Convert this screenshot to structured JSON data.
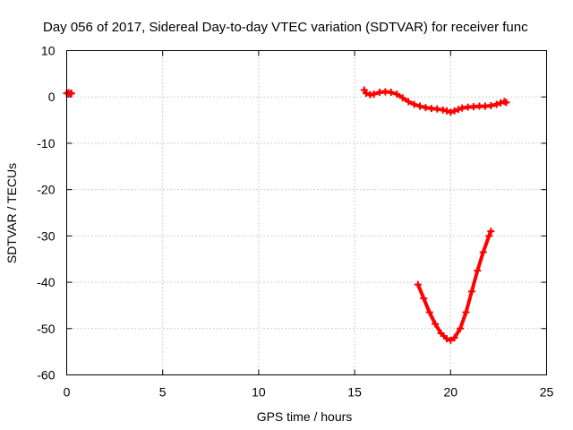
{
  "chart_data": {
    "type": "scatter",
    "title": "Day 056 of 2017, Sidereal Day-to-day VTEC variation (SDTVAR) for receiver func",
    "xlabel": "GPS time / hours",
    "ylabel": "SDTVAR / TECUs",
    "xlim": [
      0,
      25
    ],
    "ylim": [
      -60,
      10
    ],
    "xticks": [
      0,
      5,
      10,
      15,
      20,
      25
    ],
    "xtick_labels": [
      "0",
      "5",
      "10",
      "15",
      "20",
      "25"
    ],
    "yticks": [
      10,
      0,
      -10,
      -20,
      -30,
      -40,
      -50,
      -60
    ],
    "ytick_labels": [
      "10",
      "0",
      "-10",
      "-20",
      "-30",
      "-40",
      "-50",
      "-60"
    ],
    "grid": true,
    "color": "#ff0000",
    "series": [
      {
        "name": "segment-start",
        "x": [
          0.0,
          0.1,
          0.2,
          0.25
        ],
        "y": [
          0.8,
          0.9,
          0.7,
          0.8
        ]
      },
      {
        "name": "segment-upper",
        "x": [
          15.5,
          15.6,
          15.8,
          16.0,
          16.3,
          16.6,
          16.9,
          17.2,
          17.5,
          17.8,
          18.1,
          18.4,
          18.7,
          19.0,
          19.3,
          19.6,
          19.8,
          20.0,
          20.2,
          20.4,
          20.6,
          20.9,
          21.2,
          21.5,
          21.8,
          22.1,
          22.4,
          22.6,
          22.8,
          22.9
        ],
        "y": [
          1.5,
          0.8,
          0.5,
          0.6,
          1.0,
          1.1,
          1.0,
          0.6,
          -0.2,
          -1.0,
          -1.6,
          -2.0,
          -2.3,
          -2.5,
          -2.6,
          -2.8,
          -3.0,
          -3.3,
          -3.0,
          -2.7,
          -2.4,
          -2.2,
          -2.1,
          -2.0,
          -2.0,
          -1.9,
          -1.6,
          -1.3,
          -1.0,
          -1.2
        ]
      },
      {
        "name": "segment-lower",
        "x": [
          18.3,
          18.6,
          18.9,
          19.2,
          19.5,
          19.8,
          20.0,
          20.2,
          20.5,
          20.8,
          21.1,
          21.4,
          21.7,
          22.0,
          22.1
        ],
        "y": [
          -40.5,
          -43.5,
          -46.5,
          -49.0,
          -51.0,
          -52.2,
          -52.5,
          -52.0,
          -50.0,
          -46.5,
          -42.0,
          -37.5,
          -33.5,
          -30.0,
          -29.0
        ]
      }
    ]
  }
}
